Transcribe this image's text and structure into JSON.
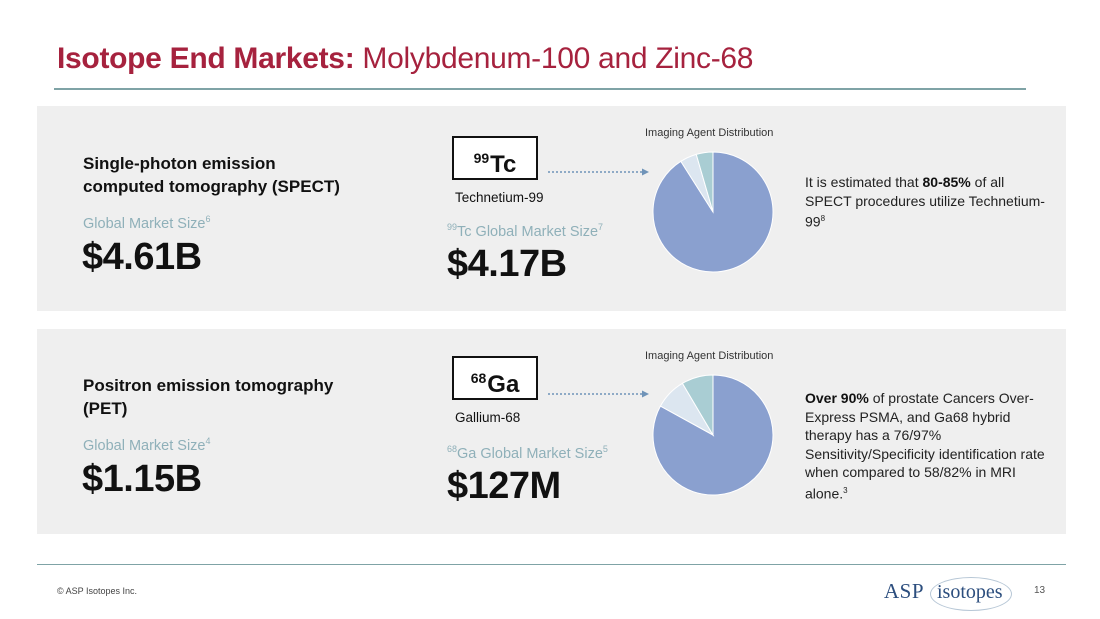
{
  "title": {
    "bold": "Isotope End Markets:",
    "rest": " Molybdenum-100 and Zinc-68"
  },
  "rows": [
    {
      "heading_line1": "Single-photon emission",
      "heading_line2": "computed tomography (SPECT)",
      "market_label": "Global Market Size",
      "market_ref": "6",
      "market_value": "$4.61B",
      "isotope_mass": "99",
      "isotope_symbol": "Tc",
      "isotope_name": "Technetium-99",
      "sub_label_pre": "99",
      "sub_label": "Tc Global Market Size",
      "sub_ref": "7",
      "sub_value": "$4.17B",
      "pie_title": "Imaging Agent Distribution",
      "pie_data": [
        {
          "value": 91,
          "color": "#8aa0cf"
        },
        {
          "value": 4.5,
          "color": "#dce6f0"
        },
        {
          "value": 4.5,
          "color": "#a9cdd3"
        }
      ],
      "note_pre": "It is estimated that ",
      "note_bold": "80-85%",
      "note_post": " of all SPECT procedures utilize Technetium-99",
      "note_ref": "8"
    },
    {
      "heading_line1": "Positron emission tomography",
      "heading_line2": "(PET)",
      "market_label": "Global Market Size",
      "market_ref": "4",
      "market_value": "$1.15B",
      "isotope_mass": "68",
      "isotope_symbol": "Ga",
      "isotope_name": "Gallium-68",
      "sub_label_pre": "68",
      "sub_label": "Ga Global Market Size",
      "sub_ref": "5",
      "sub_value": "$127M",
      "pie_title": "Imaging Agent Distribution",
      "pie_data": [
        {
          "value": 83,
          "color": "#8aa0cf"
        },
        {
          "value": 8.5,
          "color": "#dce6f0"
        },
        {
          "value": 8.5,
          "color": "#a9cdd3"
        }
      ],
      "note_pre": "",
      "note_bold": "Over 90%",
      "note_post": " of prostate Cancers Over-Express PSMA, and Ga68 hybrid therapy has a 76/97% Sensitivity/Specificity identification rate when compared to 58/82% in MRI alone.",
      "note_ref": "3"
    }
  ],
  "footer": {
    "copyright": "© ASP Isotopes Inc.",
    "logo_asp": "ASP",
    "logo_isotopes": "isotopes",
    "page_number": "13"
  },
  "colors": {
    "title_accent": "#a6223e",
    "rule": "#7fa3a6",
    "panel_bg": "#efefef",
    "muted_label": "#8fb0b9",
    "arrow": "#6f93b8"
  }
}
